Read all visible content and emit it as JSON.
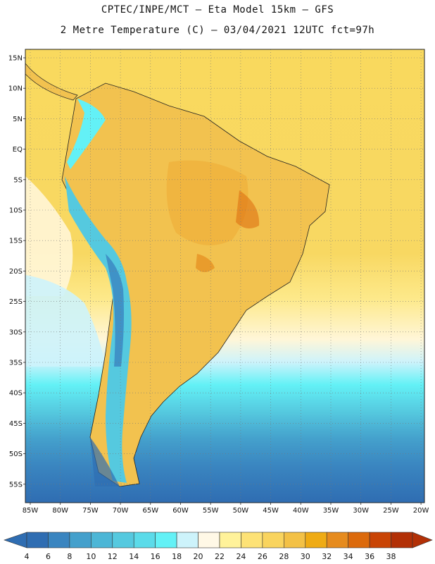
{
  "header": {
    "line1": "CPTEC/INPE/MCT –  Eta Model 15km – GFS",
    "line2": "2 Metre Temperature (C) – 03/04/2021 12UTC fct=97h"
  },
  "axes": {
    "lat_ticks": [
      "15N",
      "10N",
      "5N",
      "EQ",
      "5S",
      "10S",
      "15S",
      "20S",
      "25S",
      "30S",
      "35S",
      "40S",
      "45S",
      "50S",
      "55S"
    ],
    "lon_ticks": [
      "85W",
      "80W",
      "75W",
      "70W",
      "65W",
      "60W",
      "55W",
      "50W",
      "45W",
      "40W",
      "35W",
      "30W",
      "25W",
      "20W"
    ]
  },
  "colorbar": {
    "labels": [
      "4",
      "6",
      "8",
      "10",
      "12",
      "14",
      "16",
      "18",
      "20",
      "22",
      "24",
      "26",
      "28",
      "30",
      "32",
      "34",
      "36",
      "38"
    ],
    "colors": [
      "#2f6db2",
      "#3a85c0",
      "#44a0cc",
      "#4cb6d6",
      "#55c9df",
      "#5bdbe9",
      "#63f1f6",
      "#cdf3fb",
      "#fff8e6",
      "#fff29a",
      "#fde276",
      "#f9d45e",
      "#f3c146",
      "#efab14",
      "#e68b1e",
      "#dc6a0c",
      "#c94405",
      "#b23006"
    ]
  },
  "colors": {
    "ocean_warm": "#f7d359",
    "ocean_mid": "#fde57c",
    "land": "#f2c24f",
    "land_hot": "#eaa52d",
    "andes": "#55c9df",
    "andes_high": "#3a85c0",
    "south_sea": "#2f6db2"
  }
}
